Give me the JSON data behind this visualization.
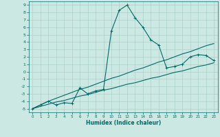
{
  "xlabel": "Humidex (Indice chaleur)",
  "bg_color": "#cce8e2",
  "grid_color": "#aad0c8",
  "line_color": "#006868",
  "xlim": [
    -0.5,
    23.5
  ],
  "ylim": [
    -5.5,
    9.5
  ],
  "xticks": [
    0,
    1,
    2,
    3,
    4,
    5,
    6,
    7,
    8,
    9,
    10,
    11,
    12,
    13,
    14,
    15,
    16,
    17,
    18,
    19,
    20,
    21,
    22,
    23
  ],
  "yticks": [
    9,
    8,
    7,
    6,
    5,
    4,
    3,
    2,
    1,
    0,
    -1,
    -2,
    -3,
    -4,
    -5
  ],
  "curve1_x": [
    0,
    1,
    2,
    3,
    4,
    5,
    6,
    7,
    8,
    9,
    10,
    11,
    12,
    13,
    14,
    15,
    16,
    17,
    18,
    19,
    20,
    21,
    22,
    23
  ],
  "curve1_y": [
    -5.0,
    -4.5,
    -4.0,
    -4.5,
    -4.2,
    -4.3,
    -2.2,
    -3.0,
    -2.6,
    -2.4,
    5.5,
    8.3,
    9.0,
    7.3,
    6.0,
    4.3,
    3.6,
    0.5,
    0.7,
    1.0,
    2.0,
    2.3,
    2.2,
    1.5
  ],
  "curve2_x": [
    0,
    1,
    2,
    3,
    4,
    5,
    6,
    7,
    8,
    9,
    10,
    11,
    12,
    13,
    14,
    15,
    16,
    17,
    18,
    19,
    20,
    21,
    22,
    23
  ],
  "curve2_y": [
    -5.0,
    -4.7,
    -4.4,
    -4.1,
    -3.9,
    -3.6,
    -3.3,
    -3.1,
    -2.8,
    -2.5,
    -2.3,
    -2.0,
    -1.7,
    -1.5,
    -1.2,
    -0.9,
    -0.7,
    -0.4,
    -0.1,
    0.1,
    0.4,
    0.7,
    0.9,
    1.2
  ],
  "curve3_x": [
    0,
    1,
    2,
    3,
    4,
    5,
    6,
    7,
    8,
    9,
    10,
    11,
    12,
    13,
    14,
    15,
    16,
    17,
    18,
    19,
    20,
    21,
    22,
    23
  ],
  "curve3_y": [
    -5.0,
    -4.5,
    -4.0,
    -3.6,
    -3.2,
    -2.8,
    -2.4,
    -2.1,
    -1.7,
    -1.3,
    -0.9,
    -0.6,
    -0.2,
    0.2,
    0.5,
    0.9,
    1.3,
    1.6,
    2.0,
    2.4,
    2.7,
    3.1,
    3.5,
    3.8
  ],
  "marker_style": "+",
  "marker_size": 3,
  "line_width": 0.8
}
